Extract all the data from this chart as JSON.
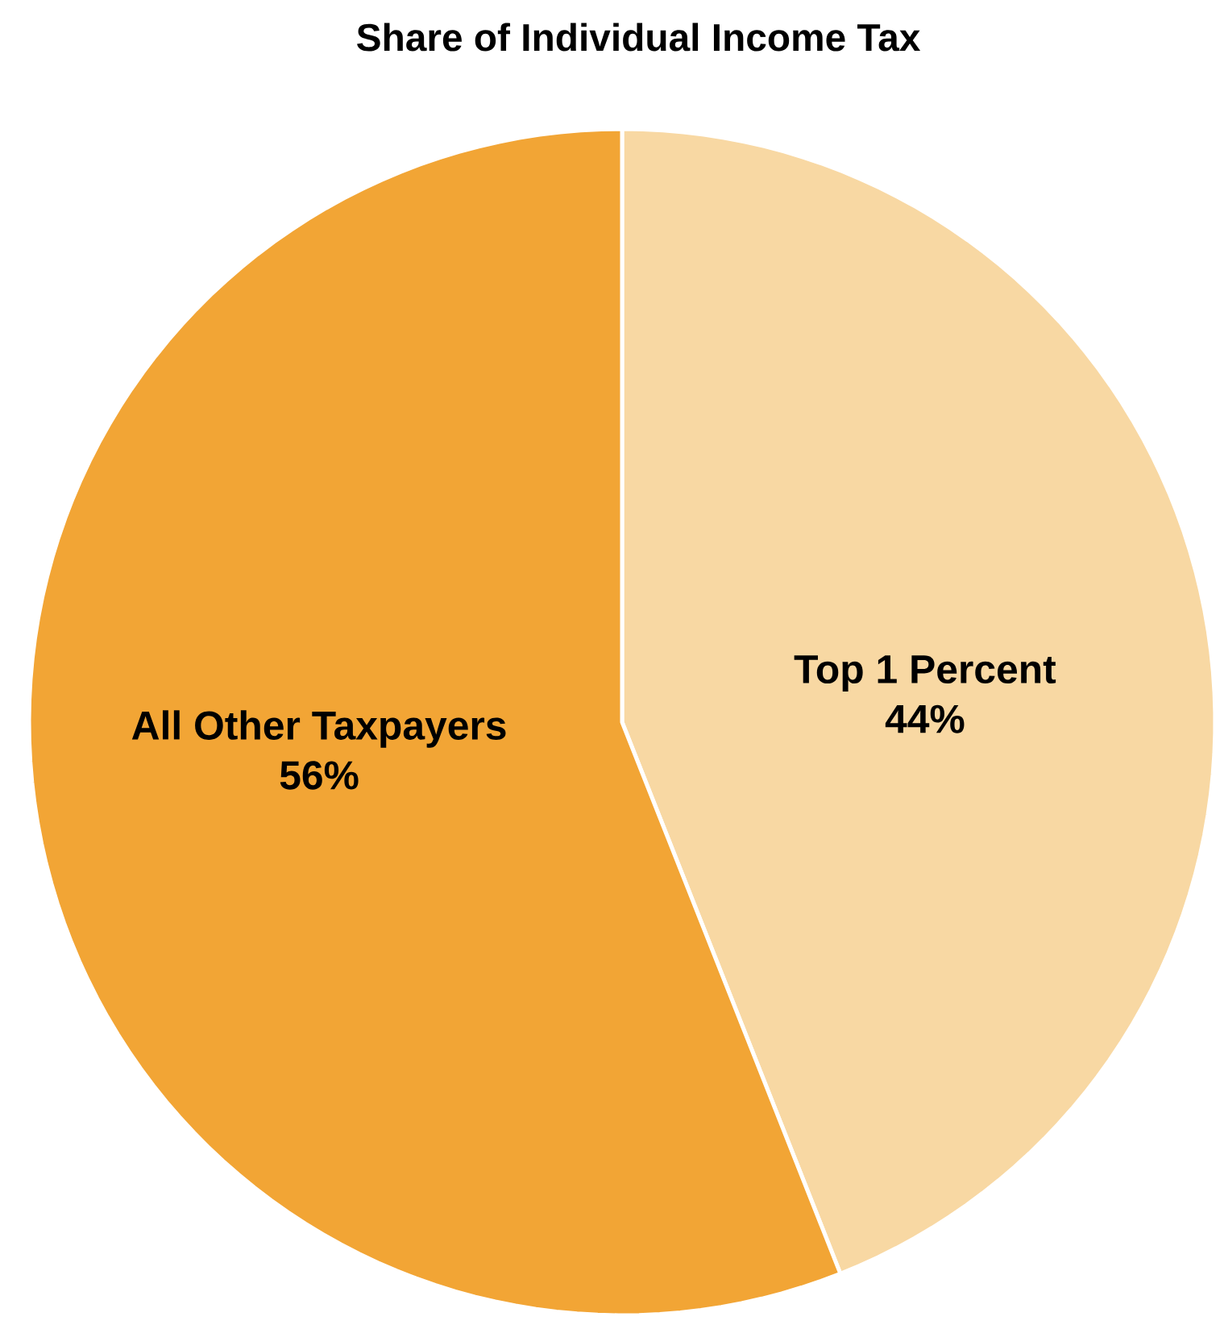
{
  "chart_data": {
    "type": "pie",
    "title": "Share of Individual Income Tax",
    "categories": [
      "Top 1 Percent",
      "All Other Taxpayers"
    ],
    "values": [
      44,
      56
    ],
    "value_labels": [
      "44%",
      "56%"
    ],
    "colors": [
      "#f8d8a3",
      "#f2a535"
    ]
  }
}
